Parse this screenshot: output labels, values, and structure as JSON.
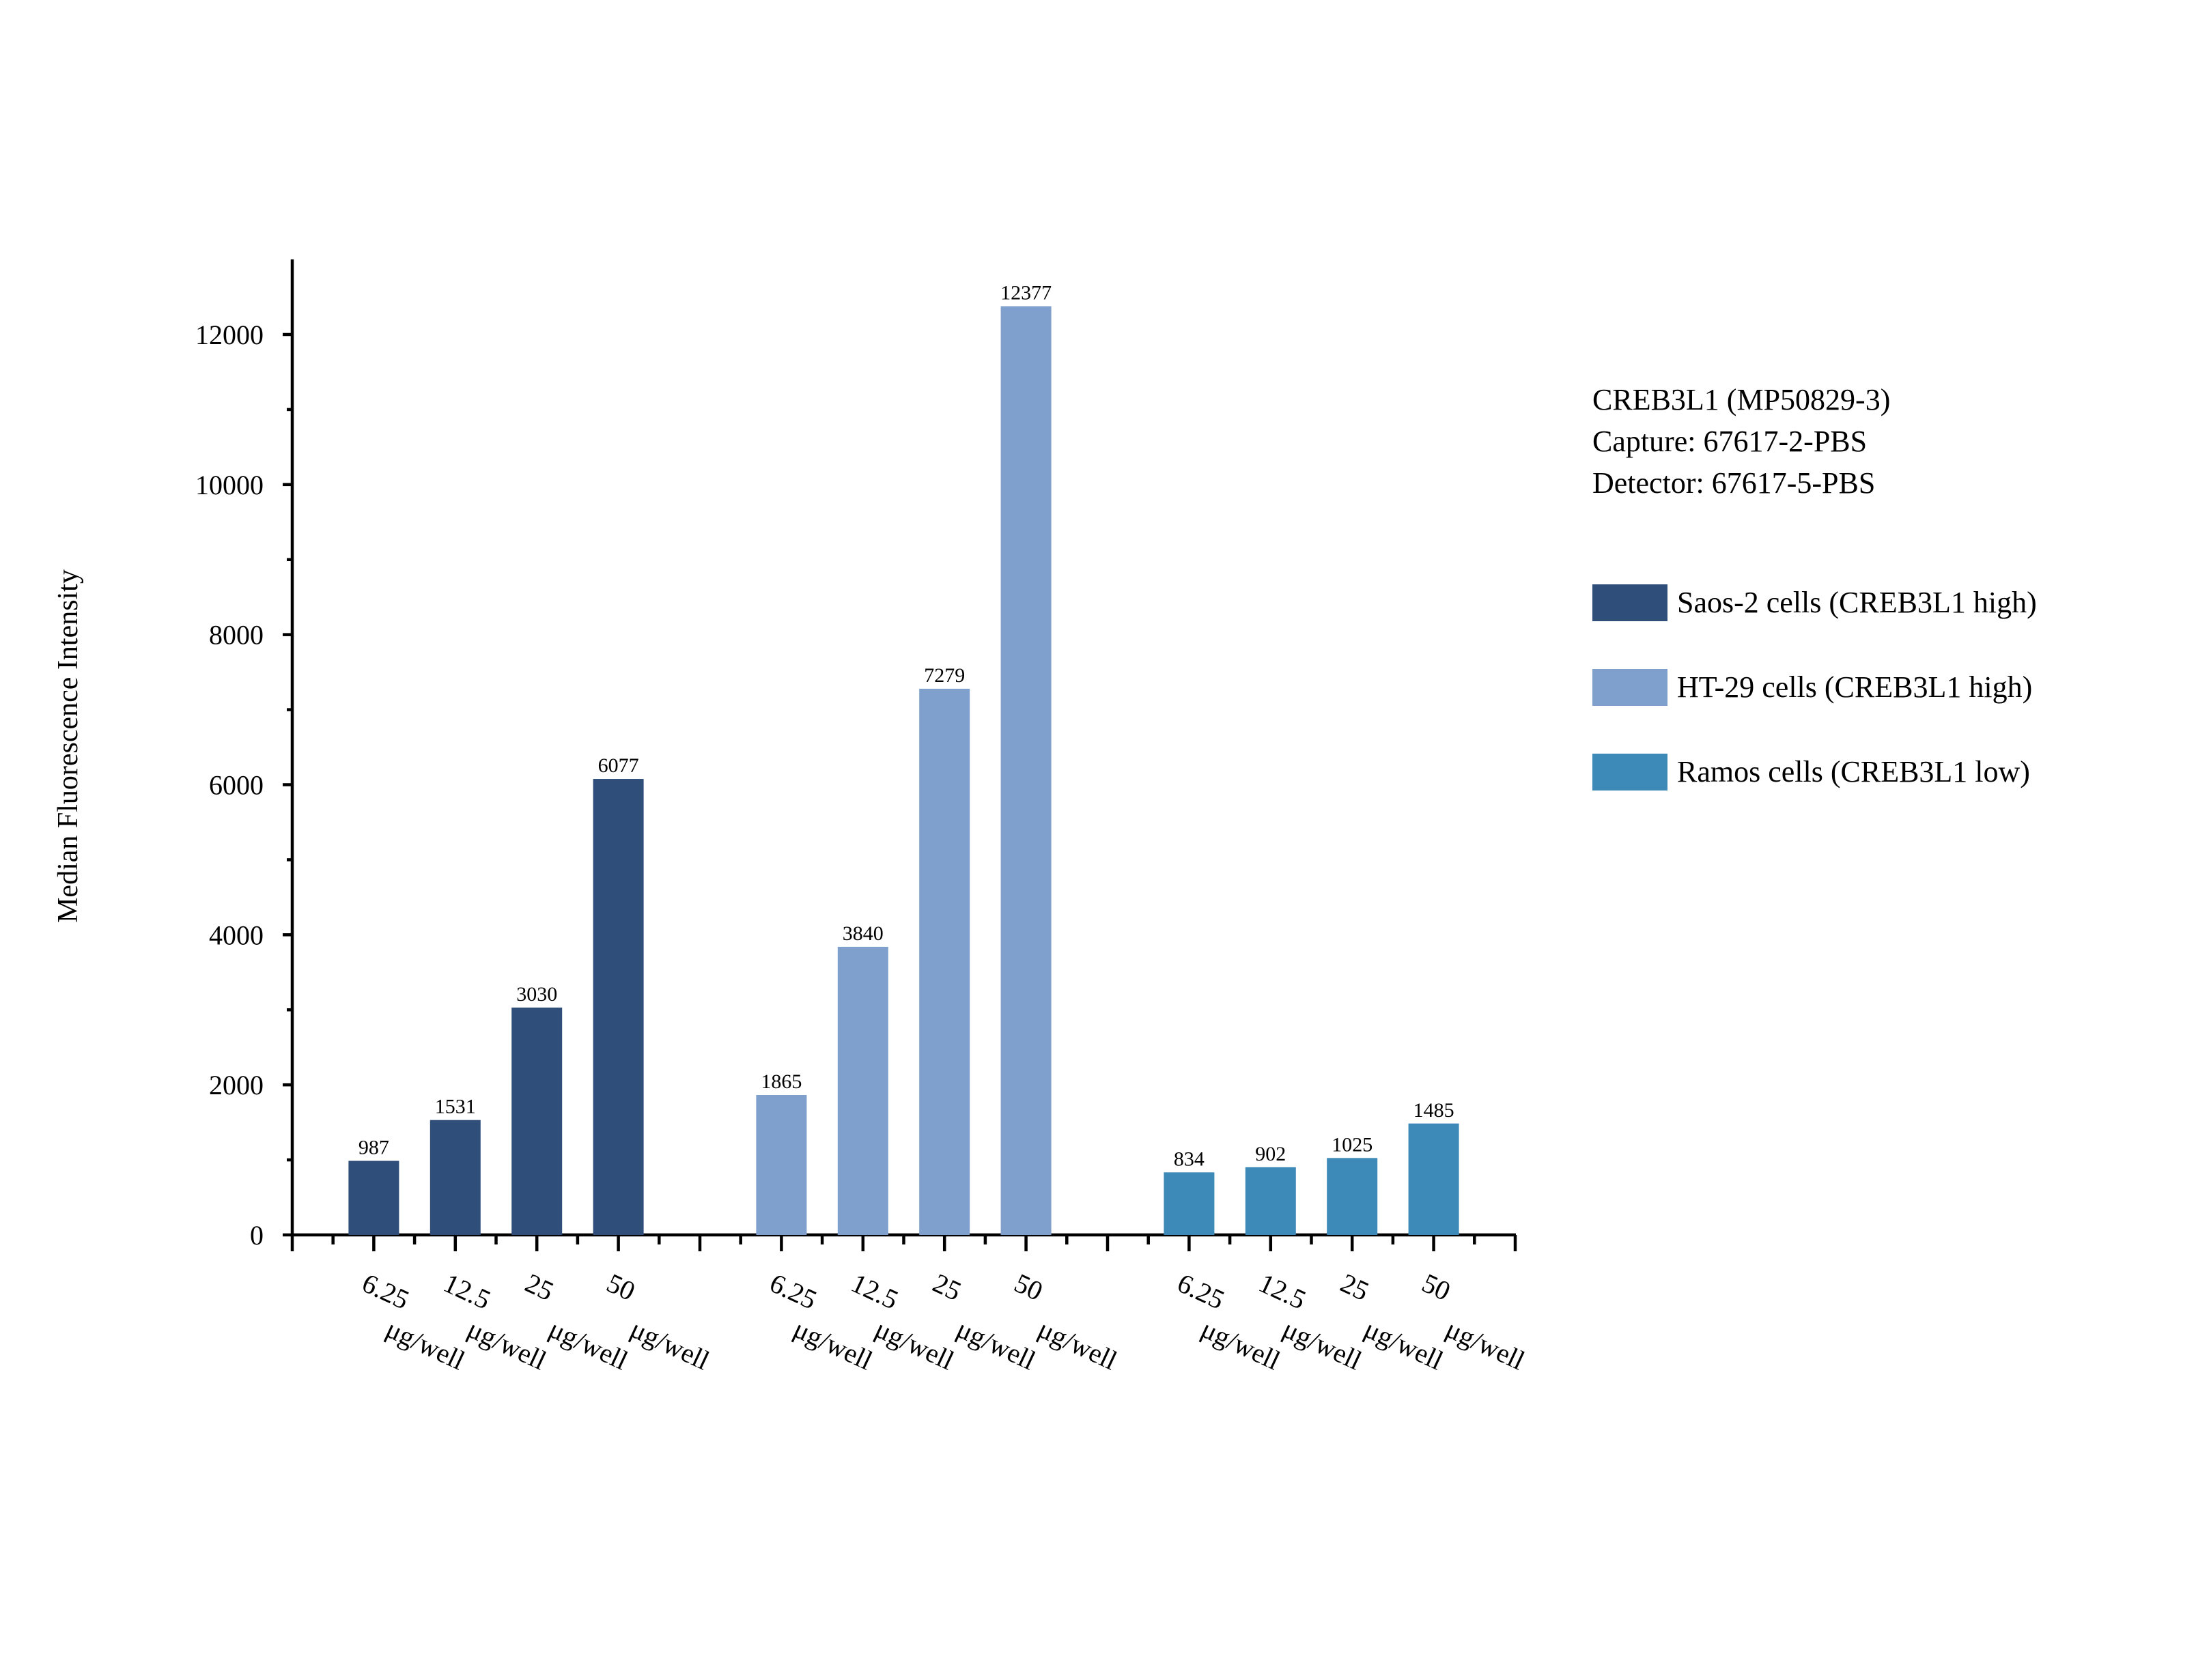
{
  "chart_data": {
    "type": "bar",
    "title": "",
    "xlabel": "",
    "ylabel": "Median Fluorescence Intensity",
    "ylim": [
      0,
      13000
    ],
    "yticks": [
      0,
      2000,
      4000,
      6000,
      8000,
      10000,
      12000
    ],
    "grid": false,
    "legend_position": "right",
    "info_lines": [
      "CREB3L1 (MP50829-3)",
      "Capture: 67617-2-PBS",
      "Detector: 67617-5-PBS"
    ],
    "series": [
      {
        "name": "Saos-2 cells (CREB3L1 high)",
        "color": "#2F4F7A",
        "categories": [
          "6.25 μg/well",
          "12.5 μg/well",
          "25 μg/well",
          "50 μg/well"
        ],
        "values": [
          987,
          1531,
          3030,
          6077
        ]
      },
      {
        "name": "HT-29 cells (CREB3L1 high)",
        "color": "#7FA0CC",
        "categories": [
          "6.25 μg/well",
          "12.5 μg/well",
          "25 μg/well",
          "50 μg/well"
        ],
        "values": [
          1865,
          3840,
          7279,
          12377
        ]
      },
      {
        "name": "Ramos cells (CREB3L1 low)",
        "color": "#3D8AB8",
        "categories": [
          "6.25 μg/well",
          "12.5 μg/well",
          "25 μg/well",
          "50 μg/well"
        ],
        "values": [
          834,
          902,
          1025,
          1485
        ]
      }
    ]
  }
}
